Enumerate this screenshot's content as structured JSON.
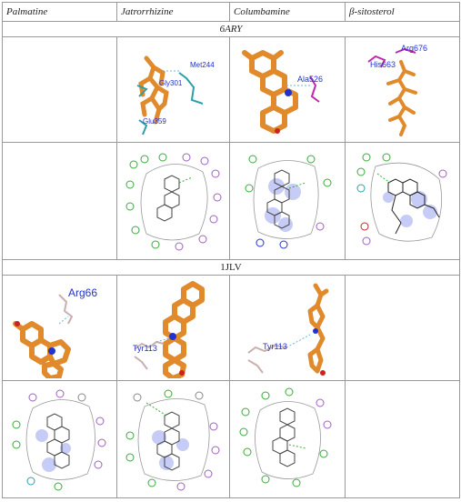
{
  "table": {
    "headers": [
      "Palmatine",
      "Jatrorrhizine",
      "Columbamine",
      "β-sitosterol"
    ],
    "section_1": "6ARY",
    "section_2": "1JLV"
  },
  "labels_6ary": {
    "jatrorrhizine": [
      "Met244",
      "Gly301",
      "Glu359"
    ],
    "columbamine": [
      "Ala526"
    ],
    "sitosterol": [
      "Arg676",
      "His663"
    ]
  },
  "labels_1jlv": {
    "palmatine": [
      "Arg66"
    ],
    "jatrorrhizine": [
      "Tyr113"
    ],
    "columbamine": [
      "Tyr113"
    ]
  },
  "colors": {
    "ligand": "#e08a2c",
    "residue_blue": "#2233cc",
    "residue_magenta": "#c028b0",
    "hbond": "#3aaa3a"
  }
}
